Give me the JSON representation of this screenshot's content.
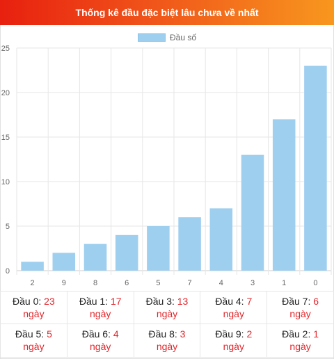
{
  "header": {
    "title": "Thống kê đầu đặc biệt lâu chưa về nhất"
  },
  "colors": {
    "header_start": "#e8200f",
    "header_end": "#f8971e",
    "bar": "#9fcfef",
    "value_red": "#e2262b"
  },
  "chart_data": {
    "type": "bar",
    "categories": [
      "2",
      "9",
      "8",
      "6",
      "5",
      "7",
      "4",
      "3",
      "1",
      "0"
    ],
    "series": [
      {
        "name": "Đầu số",
        "values": [
          1,
          2,
          3,
          4,
          5,
          6,
          7,
          13,
          17,
          23
        ]
      }
    ],
    "title": "",
    "xlabel": "",
    "ylabel": "",
    "ylim": [
      0,
      25
    ],
    "yticks": [
      "0",
      "5",
      "10",
      "15",
      "20",
      "25"
    ],
    "grid": true,
    "legend_position": "top"
  },
  "stats": {
    "unit": "ngày",
    "rows": [
      [
        {
          "label": "Đầu 0:",
          "value": "23"
        },
        {
          "label": "Đầu 1:",
          "value": "17"
        },
        {
          "label": "Đầu 3:",
          "value": "13"
        },
        {
          "label": "Đầu 4:",
          "value": "7"
        },
        {
          "label": "Đầu 7:",
          "value": "6"
        }
      ],
      [
        {
          "label": "Đầu 5:",
          "value": "5"
        },
        {
          "label": "Đầu 6:",
          "value": "4"
        },
        {
          "label": "Đầu 8:",
          "value": "3"
        },
        {
          "label": "Đầu 9:",
          "value": "2"
        },
        {
          "label": "Đầu 2:",
          "value": "1"
        }
      ]
    ]
  }
}
